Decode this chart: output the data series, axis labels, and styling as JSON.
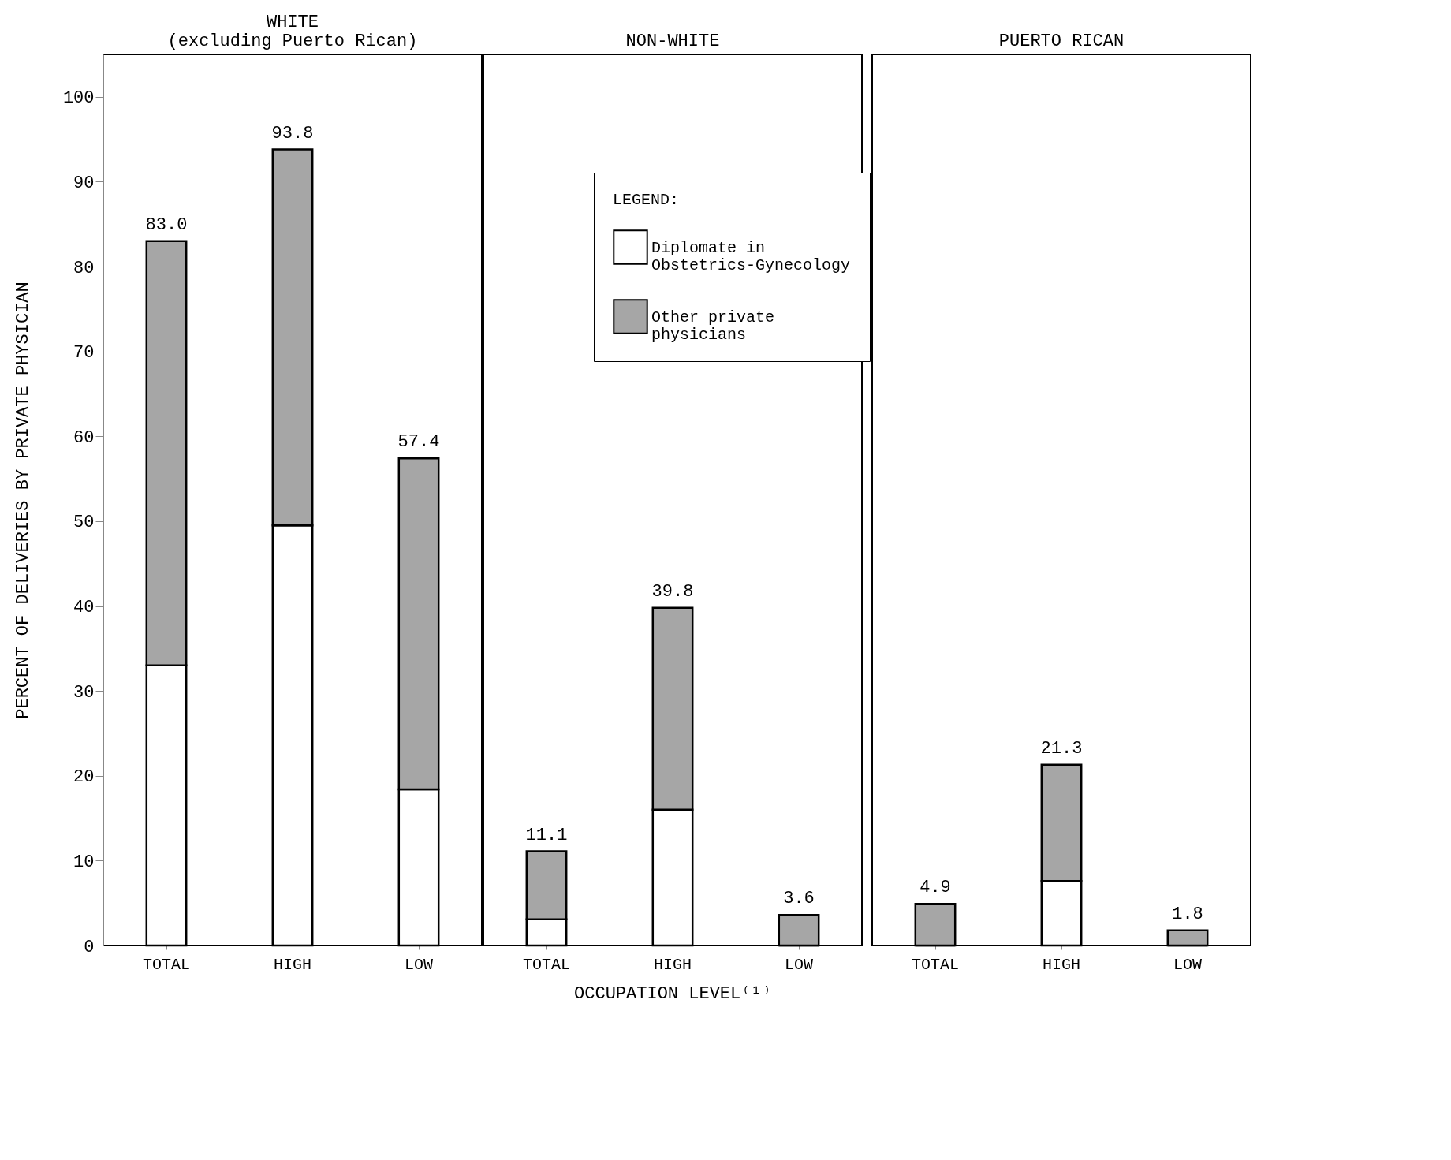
{
  "chart_data": [
    {
      "type": "bar",
      "stacked": true,
      "title": "WHITE\n(excluding Puerto Rican)",
      "categories": [
        "TOTAL",
        "HIGH",
        "LOW"
      ],
      "ylabel": "PERCENT OF DELIVERIES BY PRIVATE PHYSICIAN",
      "ylim": [
        0,
        105
      ],
      "yticks": [
        0,
        10,
        20,
        30,
        40,
        50,
        60,
        70,
        80,
        90,
        100
      ],
      "tick_labels": "xy",
      "legend": false,
      "series": [
        {
          "color": "#ffffff",
          "values": [
            33.0,
            49.5,
            18.4
          ]
        },
        {
          "color": "#a6a6a6",
          "values": [
            50.0,
            44.3,
            39.0
          ]
        }
      ],
      "totals": [
        "83.0",
        "93.8",
        "57.4"
      ]
    },
    {
      "type": "bar",
      "stacked": true,
      "title": "NON-WHITE",
      "categories": [
        "TOTAL",
        "HIGH",
        "LOW"
      ],
      "xlabel": "OCCUPATION LEVEL⁽¹⁾",
      "ylim": [
        0,
        105
      ],
      "tick_labels": "x",
      "legend": "top right",
      "legend_title": "LEGEND:",
      "series": [
        {
          "name": "Diplomate in Obstetrics-Gynecology",
          "color": "#ffffff",
          "values": [
            3.1,
            16.0,
            0
          ]
        },
        {
          "name": "Other private physicians",
          "color": "#a6a6a6",
          "values": [
            8.0,
            23.8,
            3.6
          ]
        }
      ],
      "totals": [
        "11.1",
        "39.8",
        "3.6"
      ]
    },
    {
      "type": "bar",
      "stacked": true,
      "title": "PUERTO RICAN",
      "categories": [
        "TOTAL",
        "HIGH",
        "LOW"
      ],
      "ylim": [
        0,
        105
      ],
      "tick_labels": "x",
      "legend": false,
      "series": [
        {
          "color": "#ffffff",
          "values": [
            0,
            7.6,
            0
          ]
        },
        {
          "color": "#a6a6a6",
          "values": [
            4.9,
            13.7,
            1.8
          ]
        }
      ],
      "totals": [
        "4.9",
        "21.3",
        "1.8"
      ]
    }
  ]
}
